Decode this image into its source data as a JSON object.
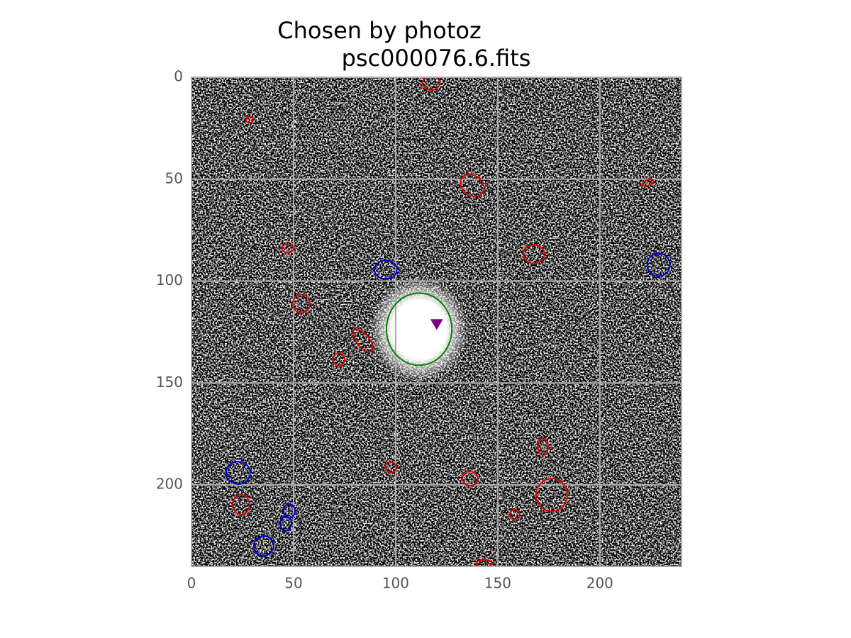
{
  "chart_data": {
    "type": "image",
    "title": [
      "Chosen by photoz",
      "psc000076.6.fits"
    ],
    "xlim": [
      0,
      240
    ],
    "ylim": [
      240,
      0
    ],
    "xticks": [
      0,
      50,
      100,
      150,
      200
    ],
    "yticks": [
      0,
      50,
      100,
      150,
      200
    ],
    "grid": true,
    "ellipses": [
      {
        "x": 117.4,
        "y": 2.8,
        "width": 8.3,
        "height": 7,
        "angle": 0,
        "color": "#e00000"
      },
      {
        "x": 28.5,
        "y": 20.8,
        "width": 3.5,
        "height": 3,
        "angle": 0,
        "color": "#e00000"
      },
      {
        "x": 137.5,
        "y": 53.1,
        "width": 12.5,
        "height": 9.7,
        "angle": 35,
        "color": "#e00000"
      },
      {
        "x": 223.6,
        "y": 51.7,
        "width": 5.6,
        "height": 2.8,
        "angle": -20,
        "color": "#e00000"
      },
      {
        "x": 47.2,
        "y": 84,
        "width": 5.6,
        "height": 4.2,
        "angle": 0,
        "color": "#e00000"
      },
      {
        "x": 167.7,
        "y": 86.8,
        "width": 10.4,
        "height": 9,
        "angle": 0,
        "color": "#e00000"
      },
      {
        "x": 53.8,
        "y": 111.1,
        "width": 8.3,
        "height": 9,
        "angle": 0,
        "color": "#e00000"
      },
      {
        "x": 84,
        "y": 129.2,
        "width": 6,
        "height": 13.5,
        "angle": -40,
        "color": "#e00000"
      },
      {
        "x": 72.2,
        "y": 138.5,
        "width": 5.6,
        "height": 6.2,
        "angle": 0,
        "color": "#e00000"
      },
      {
        "x": 172.2,
        "y": 181.3,
        "width": 5,
        "height": 8.3,
        "angle": 0,
        "color": "#e00000"
      },
      {
        "x": 97.6,
        "y": 191.3,
        "width": 5.6,
        "height": 4.9,
        "angle": 30,
        "color": "#e00000"
      },
      {
        "x": 136.5,
        "y": 196.9,
        "width": 7.6,
        "height": 6.9,
        "angle": 0,
        "color": "#e00000"
      },
      {
        "x": 176.4,
        "y": 204.9,
        "width": 15.3,
        "height": 16,
        "angle": 0,
        "color": "#e00000"
      },
      {
        "x": 24.3,
        "y": 209.7,
        "width": 8.3,
        "height": 9.7,
        "angle": 0,
        "color": "#e00000"
      },
      {
        "x": 158.3,
        "y": 214.6,
        "width": 4.9,
        "height": 4.9,
        "angle": 0,
        "color": "#e00000"
      },
      {
        "x": 143.4,
        "y": 238.5,
        "width": 7.6,
        "height": 3.5,
        "angle": 0,
        "color": "#e00000"
      },
      {
        "x": 95.1,
        "y": 94.4,
        "width": 11,
        "height": 9,
        "angle": 0,
        "color": "#0000e0"
      },
      {
        "x": 228.8,
        "y": 92,
        "width": 11.1,
        "height": 11.1,
        "angle": 0,
        "color": "#0000e0"
      },
      {
        "x": 22.9,
        "y": 194.1,
        "width": 11.8,
        "height": 11.1,
        "angle": 0,
        "color": "#0000e0"
      },
      {
        "x": 47.9,
        "y": 212.8,
        "width": 5.6,
        "height": 6.9,
        "angle": 0,
        "color": "#0000e0"
      },
      {
        "x": 46.2,
        "y": 219,
        "width": 5.6,
        "height": 6.9,
        "angle": 0,
        "color": "#0000e0"
      },
      {
        "x": 35.4,
        "y": 229.9,
        "width": 9.7,
        "height": 9.7,
        "angle": 0,
        "color": "#0000e0"
      },
      {
        "x": 111.5,
        "y": 123.6,
        "width": 32,
        "height": 35.4,
        "angle": 0,
        "color": "#008000"
      }
    ],
    "marker": {
      "x": 120.1,
      "y": 121.2,
      "color": "#800080"
    }
  }
}
